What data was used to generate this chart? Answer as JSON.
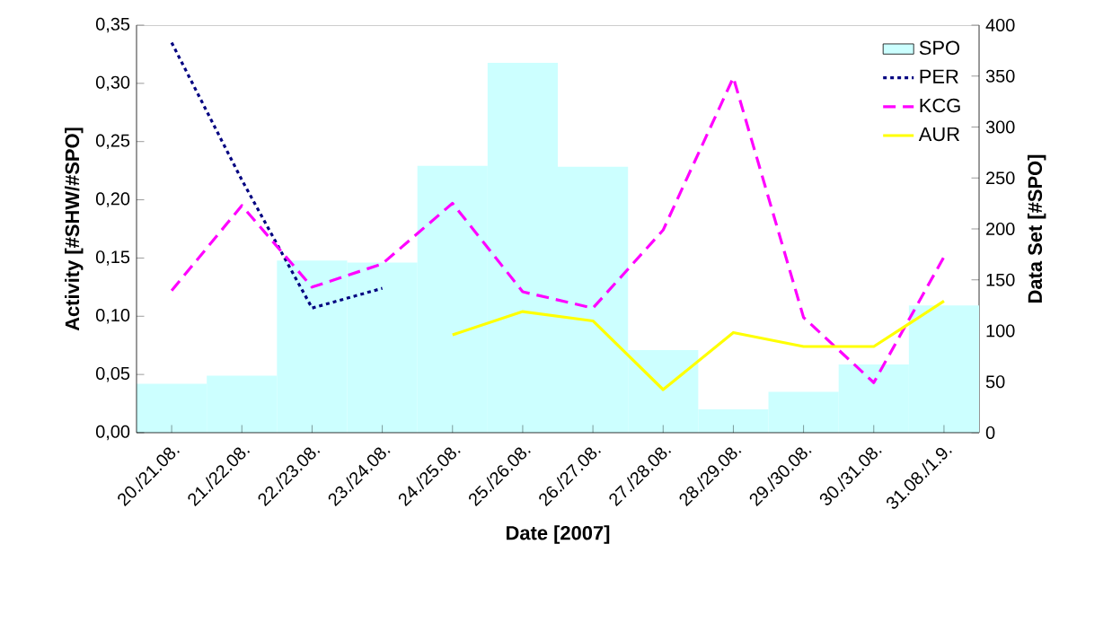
{
  "chart_data": {
    "type": "bar",
    "xlabel": "Date [2007]",
    "ylabel": "Activity [#SHW/#SPO]",
    "y2label": "Data Set [#SPO]",
    "categories": [
      "20./21.08.",
      "21./22.08.",
      "22./23.08.",
      "23./24.08.",
      "24./25.08.",
      "25./26.08.",
      "26./27.08.",
      "27./28.08.",
      "28./29.08.",
      "29./30.08.",
      "30./31.08.",
      "31.08./1.9."
    ],
    "series": [
      {
        "name": "SPO",
        "axis": "y2",
        "color": "#ccffff",
        "values": [
          48,
          56,
          169,
          167,
          262,
          363,
          261,
          81,
          23,
          40,
          67,
          125
        ]
      },
      {
        "name": "PER",
        "type": "line",
        "line_style": "dotted",
        "color": "#000080",
        "values": [
          0.335,
          0.217,
          0.107,
          0.124,
          null,
          null,
          null,
          null,
          null,
          null,
          null,
          null
        ]
      },
      {
        "name": "KCG",
        "type": "line",
        "line_style": "dashed",
        "color": "#ff00ff",
        "values": [
          0.122,
          0.195,
          0.125,
          0.145,
          0.197,
          0.121,
          0.107,
          0.174,
          0.305,
          0.099,
          0.043,
          0.151
        ]
      },
      {
        "name": "AUR",
        "type": "line",
        "line_style": "solid",
        "color": "#ffff00",
        "values": [
          null,
          null,
          null,
          null,
          0.084,
          0.104,
          0.096,
          0.037,
          0.086,
          0.074,
          0.074,
          0.113
        ]
      }
    ],
    "ylim": [
      0,
      0.35
    ],
    "yticks": [
      {
        "value": 0,
        "label": "0,00"
      },
      {
        "value": 0.05,
        "label": "0,05"
      },
      {
        "value": 0.1,
        "label": "0,10"
      },
      {
        "value": 0.15,
        "label": "0,15"
      },
      {
        "value": 0.2,
        "label": "0,20"
      },
      {
        "value": 0.25,
        "label": "0,25"
      },
      {
        "value": 0.3,
        "label": "0,30"
      },
      {
        "value": 0.35,
        "label": "0,35"
      }
    ],
    "y2lim": [
      0,
      400
    ],
    "y2ticks": [
      0,
      50,
      100,
      150,
      200,
      250,
      300,
      350,
      400
    ],
    "legend": "top right"
  }
}
